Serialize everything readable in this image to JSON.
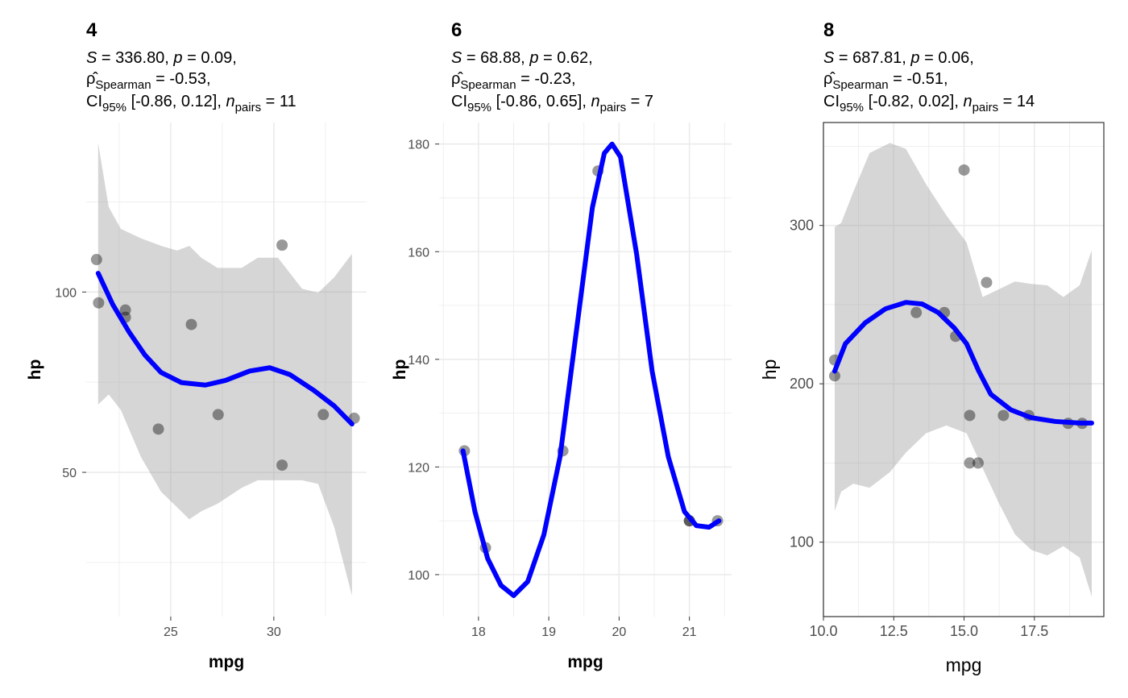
{
  "chart_data": [
    {
      "type": "scatter",
      "title": "4",
      "subtitle": {
        "S": "336.80",
        "p": "0.09",
        "rho": "-0.53",
        "ci": "[-0.86, 0.12]",
        "n": "11"
      },
      "xlabel": "mpg",
      "ylabel": "hp",
      "xlim": [
        20.9,
        34.5
      ],
      "ylim": [
        10,
        147
      ],
      "xticks": [
        25,
        30
      ],
      "yticks": [
        50,
        100
      ],
      "xminor": [
        22.5,
        27.5,
        32.5
      ],
      "yminor": [
        25,
        75,
        125
      ],
      "points": [
        [
          22.8,
          93
        ],
        [
          24.4,
          62
        ],
        [
          22.8,
          95
        ],
        [
          32.4,
          66
        ],
        [
          30.4,
          52
        ],
        [
          33.9,
          65
        ],
        [
          21.5,
          97
        ],
        [
          27.3,
          66
        ],
        [
          26.0,
          91
        ],
        [
          30.4,
          113
        ],
        [
          21.4,
          109
        ]
      ],
      "smooth": [
        [
          21.48,
          105.2
        ],
        [
          22.19,
          96.5
        ],
        [
          22.97,
          89.0
        ],
        [
          23.75,
          82.5
        ],
        [
          24.53,
          77.7
        ],
        [
          25.51,
          74.9
        ],
        [
          26.68,
          74.2
        ],
        [
          27.66,
          75.5
        ],
        [
          28.83,
          78.1
        ],
        [
          29.8,
          79.0
        ],
        [
          30.78,
          77.1
        ],
        [
          31.95,
          72.7
        ],
        [
          32.93,
          68.4
        ],
        [
          33.79,
          63.4
        ]
      ],
      "ribbon": [
        [
          21.48,
          68.8,
          141.3
        ],
        [
          21.99,
          71.6,
          123.6
        ],
        [
          22.58,
          67.3,
          117.5
        ],
        [
          23.55,
          54.3,
          114.9
        ],
        [
          24.53,
          44.6,
          112.8
        ],
        [
          25.31,
          40.3,
          111.5
        ],
        [
          25.9,
          37.0,
          112.8
        ],
        [
          26.48,
          39.2,
          109.5
        ],
        [
          27.27,
          41.3,
          106.7
        ],
        [
          28.44,
          45.7,
          106.7
        ],
        [
          29.22,
          47.8,
          109.5
        ],
        [
          30.2,
          47.8,
          109.5
        ],
        [
          31.37,
          47.8,
          100.9
        ],
        [
          32.15,
          46.8,
          99.8
        ],
        [
          32.93,
          34.8,
          104.1
        ],
        [
          33.79,
          15.8,
          110.6
        ]
      ]
    },
    {
      "type": "scatter",
      "title": "6",
      "subtitle": {
        "S": "68.88",
        "p": "0.62",
        "rho": "-0.23",
        "ci": "[-0.86, 0.65]",
        "n": "7"
      },
      "xlabel": "mpg",
      "ylabel": "hp",
      "xlim": [
        17.44,
        21.6
      ],
      "ylim": [
        92.2,
        184
      ],
      "xticks": [
        18,
        19,
        20,
        21
      ],
      "yticks": [
        100,
        120,
        140,
        160,
        180
      ],
      "xminor": [
        17.5,
        18.5,
        19.5,
        20.5,
        21.5
      ],
      "yminor": [
        110,
        130,
        150,
        170
      ],
      "points": [
        [
          21.0,
          110
        ],
        [
          21.0,
          110
        ],
        [
          21.4,
          110
        ],
        [
          18.1,
          105
        ],
        [
          19.2,
          123
        ],
        [
          17.8,
          123
        ],
        [
          19.7,
          175
        ]
      ],
      "smooth": [
        [
          17.78,
          123.0
        ],
        [
          17.95,
          111.7
        ],
        [
          18.13,
          103.0
        ],
        [
          18.32,
          98.0
        ],
        [
          18.5,
          96.1
        ],
        [
          18.7,
          98.7
        ],
        [
          18.93,
          107.4
        ],
        [
          19.16,
          121.9
        ],
        [
          19.39,
          145.0
        ],
        [
          19.62,
          168.2
        ],
        [
          19.79,
          178.3
        ],
        [
          19.9,
          180.0
        ],
        [
          20.02,
          177.6
        ],
        [
          20.25,
          159.5
        ],
        [
          20.47,
          137.8
        ],
        [
          20.7,
          121.9
        ],
        [
          20.93,
          111.7
        ],
        [
          21.1,
          109.1
        ],
        [
          21.28,
          108.8
        ],
        [
          21.42,
          110.0
        ]
      ],
      "ribbon": []
    },
    {
      "type": "scatter",
      "title": "8",
      "subtitle": {
        "S": "687.81",
        "p": "0.06",
        "rho": "-0.51",
        "ci": "[-0.82, 0.02]",
        "n": "14"
      },
      "xlabel": "mpg",
      "ylabel": "hp",
      "xlim": [
        10.0,
        19.97
      ],
      "ylim": [
        53,
        365
      ],
      "xticks": [
        10,
        12.5,
        15,
        17.5
      ],
      "yticks": [
        100,
        200,
        300
      ],
      "xminor": [
        11.25,
        13.75,
        16.25,
        18.75
      ],
      "yminor": [
        150,
        250,
        350
      ],
      "points": [
        [
          18.7,
          175
        ],
        [
          14.3,
          245
        ],
        [
          16.4,
          180
        ],
        [
          17.3,
          180
        ],
        [
          15.2,
          180
        ],
        [
          10.4,
          205
        ],
        [
          10.4,
          215
        ],
        [
          14.7,
          230
        ],
        [
          15.5,
          150
        ],
        [
          15.2,
          150
        ],
        [
          13.3,
          245
        ],
        [
          19.2,
          175
        ],
        [
          15.8,
          264
        ],
        [
          15.0,
          335
        ]
      ],
      "smooth": [
        [
          10.4,
          208
        ],
        [
          10.78,
          225.3
        ],
        [
          11.49,
          238.6
        ],
        [
          12.21,
          247.4
        ],
        [
          12.93,
          251.4
        ],
        [
          13.51,
          250.4
        ],
        [
          14.08,
          245.0
        ],
        [
          14.66,
          235.1
        ],
        [
          15.09,
          225.3
        ],
        [
          15.52,
          208.1
        ],
        [
          15.95,
          193.4
        ],
        [
          16.67,
          183.5
        ],
        [
          17.39,
          178.6
        ],
        [
          18.25,
          176.2
        ],
        [
          19.11,
          175.2
        ],
        [
          19.54,
          175.2
        ]
      ],
      "ribbon": [
        [
          10.4,
          119.7,
          299.0
        ],
        [
          10.63,
          131.9,
          301.5
        ],
        [
          11.06,
          136.9,
          321.1
        ],
        [
          11.64,
          134.4,
          345.7
        ],
        [
          12.36,
          144.2,
          352.1
        ],
        [
          12.93,
          156.5,
          348.4
        ],
        [
          13.65,
          168.8,
          326.0
        ],
        [
          14.37,
          173.7,
          306.4
        ],
        [
          15.09,
          168.8,
          289.2
        ],
        [
          15.66,
          146.7,
          254.8
        ],
        [
          16.24,
          124.6,
          259.7
        ],
        [
          16.81,
          104.9,
          264.6
        ],
        [
          17.39,
          95.1,
          263.1
        ],
        [
          17.96,
          91.6,
          262.2
        ],
        [
          18.53,
          97.5,
          254.8
        ],
        [
          19.11,
          90.2,
          262.2
        ],
        [
          19.54,
          65.6,
          284.3
        ]
      ]
    }
  ],
  "labels": {
    "rho_sub": "Spearman",
    "ci_sub": "95%",
    "n_sub": "pairs"
  },
  "colors": {
    "line": "#0000ff",
    "point": "#000000",
    "ribbon": "#999999",
    "grid": "#ebebeb"
  }
}
